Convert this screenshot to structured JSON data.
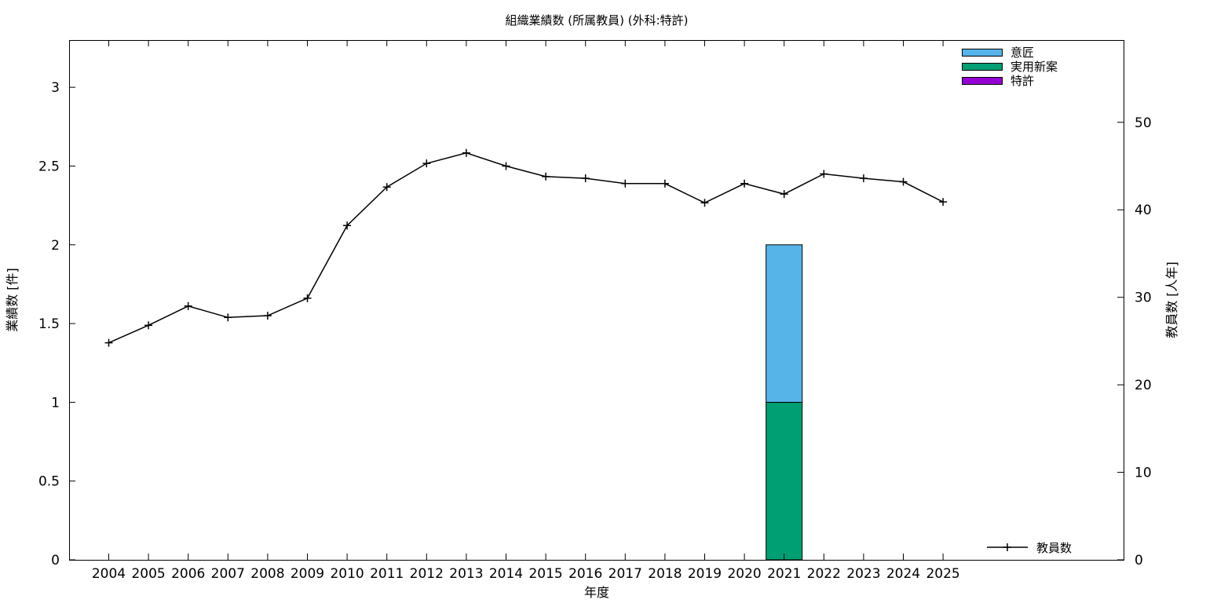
{
  "chart_data": {
    "type": "bar",
    "title": "組織業績数 (所属教員) (外科:特許)",
    "xlabel": "年度",
    "ylabel_left": "業績数 [件]",
    "ylabel_right": "教員数 [人年]",
    "categories": [
      "2004",
      "2005",
      "2006",
      "2007",
      "2008",
      "2009",
      "2010",
      "2011",
      "2012",
      "2013",
      "2014",
      "2015",
      "2016",
      "2017",
      "2018",
      "2019",
      "2020",
      "2021",
      "2022",
      "2023",
      "2024",
      "2025"
    ],
    "left_axis": {
      "ylim": [
        0,
        3.3
      ],
      "ticks": [
        0,
        0.5,
        1,
        1.5,
        2,
        2.5,
        3
      ],
      "tick_labels": [
        "0",
        "0.5",
        "1",
        "1.5",
        "2",
        "2.5",
        "3"
      ]
    },
    "right_axis": {
      "ylim": [
        0,
        59.4
      ],
      "ticks": [
        0,
        10,
        20,
        30,
        40,
        50
      ],
      "tick_labels": [
        "0",
        "10",
        "20",
        "30",
        "40",
        "50"
      ]
    },
    "grid": false,
    "stacked_bars": [
      {
        "name": "特許",
        "color": "#9400d3",
        "values": [
          0,
          0,
          0,
          0,
          0,
          0,
          0,
          0,
          0,
          0,
          0,
          0,
          0,
          0,
          0,
          0,
          0,
          0,
          0,
          0,
          0,
          0
        ]
      },
      {
        "name": "実用新案",
        "color": "#009e73",
        "values": [
          0,
          0,
          0,
          0,
          0,
          0,
          0,
          0,
          0,
          0,
          0,
          0,
          0,
          0,
          0,
          0,
          0,
          1,
          0,
          0,
          0,
          0
        ]
      },
      {
        "name": "意匠",
        "color": "#56b4e9",
        "values": [
          0,
          0,
          0,
          0,
          0,
          0,
          0,
          0,
          0,
          0,
          0,
          0,
          0,
          0,
          0,
          0,
          0,
          1,
          0,
          0,
          0,
          0
        ]
      }
    ],
    "bar_legend_order": [
      "意匠",
      "実用新案",
      "特許"
    ],
    "bar_legend_position": "top-right",
    "line_series": {
      "name": "教員数",
      "axis": "right",
      "color": "#000000",
      "marker": "plus",
      "values": [
        24.8,
        26.8,
        29.0,
        27.7,
        27.9,
        29.9,
        38.2,
        42.6,
        45.3,
        46.5,
        45.0,
        43.8,
        43.6,
        43.0,
        43.0,
        40.8,
        43.0,
        41.8,
        44.1,
        43.6,
        43.2,
        40.9
      ]
    },
    "line_legend_position": "bottom-right"
  }
}
